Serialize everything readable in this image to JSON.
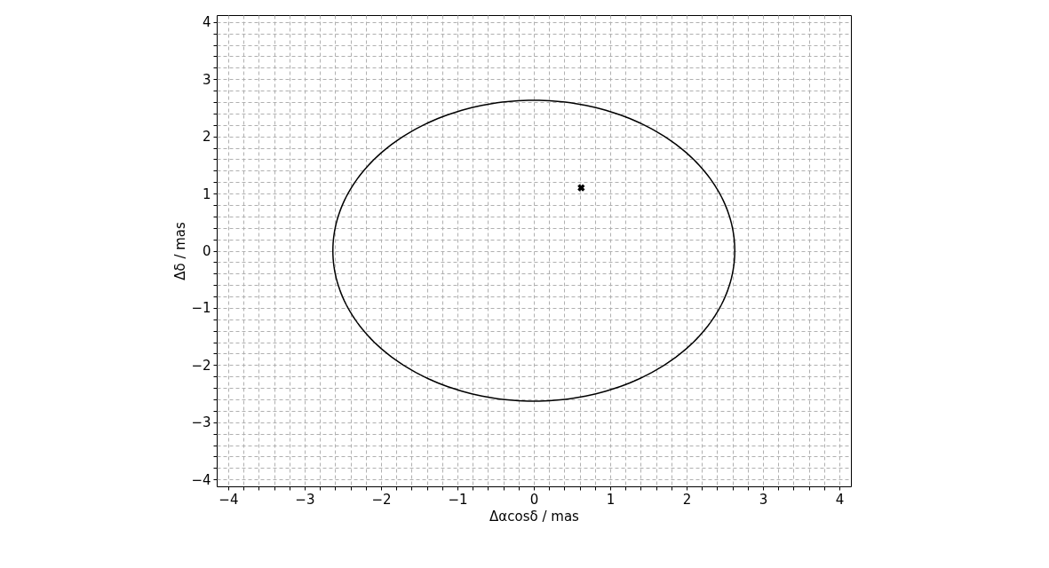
{
  "chart_data": {
    "type": "scatter",
    "xlabel": "Δαcosδ / mas",
    "ylabel": "Δδ / mas",
    "xlim": [
      -4.15,
      4.15
    ],
    "ylim": [
      -4.12,
      4.12
    ],
    "xticks": [
      -4,
      {
        "value": -3.8,
        "label": null
      },
      {
        "value": -3.6,
        "label": null
      },
      {
        "value": -3.4,
        "label": null
      },
      {
        "value": -3.2,
        "label": null
      },
      -3,
      {
        "value": -2.8,
        "label": null
      },
      {
        "value": -2.6,
        "label": null
      },
      {
        "value": -2.4,
        "label": null
      },
      {
        "value": -2.2,
        "label": null
      },
      -2,
      {
        "value": -1.8,
        "label": null
      },
      {
        "value": -1.6,
        "label": null
      },
      {
        "value": -1.4,
        "label": null
      },
      {
        "value": -1.2,
        "label": null
      },
      -1,
      {
        "value": -0.8,
        "label": null
      },
      {
        "value": -0.6,
        "label": null
      },
      {
        "value": -0.4,
        "label": null
      },
      {
        "value": -0.2,
        "label": null
      },
      0,
      {
        "value": 0.2,
        "label": null
      },
      {
        "value": 0.4,
        "label": null
      },
      {
        "value": 0.6,
        "label": null
      },
      {
        "value": 0.8,
        "label": null
      },
      1,
      {
        "value": 1.2,
        "label": null
      },
      {
        "value": 1.4,
        "label": null
      },
      {
        "value": 1.6,
        "label": null
      },
      {
        "value": 1.8,
        "label": null
      },
      2,
      {
        "value": 2.2,
        "label": null
      },
      {
        "value": 2.4,
        "label": null
      },
      {
        "value": 2.6,
        "label": null
      },
      {
        "value": 2.8,
        "label": null
      },
      3,
      {
        "value": 3.2,
        "label": null
      },
      {
        "value": 3.4,
        "label": null
      },
      {
        "value": 3.6,
        "label": null
      },
      {
        "value": 3.8,
        "label": null
      },
      4
    ],
    "yticks": [
      -4,
      {
        "value": -3.8,
        "label": null
      },
      {
        "value": -3.6,
        "label": null
      },
      {
        "value": -3.4,
        "label": null
      },
      {
        "value": -3.2,
        "label": null
      },
      -3,
      {
        "value": -2.8,
        "label": null
      },
      {
        "value": -2.6,
        "label": null
      },
      {
        "value": -2.4,
        "label": null
      },
      {
        "value": -2.2,
        "label": null
      },
      -2,
      {
        "value": -1.8,
        "label": null
      },
      {
        "value": -1.6,
        "label": null
      },
      {
        "value": -1.4,
        "label": null
      },
      {
        "value": -1.2,
        "label": null
      },
      -1,
      {
        "value": -0.8,
        "label": null
      },
      {
        "value": -0.6,
        "label": null
      },
      {
        "value": -0.4,
        "label": null
      },
      {
        "value": -0.2,
        "label": null
      },
      0,
      {
        "value": 0.2,
        "label": null
      },
      {
        "value": 0.4,
        "label": null
      },
      {
        "value": 0.6,
        "label": null
      },
      {
        "value": 0.8,
        "label": null
      },
      1,
      {
        "value": 1.2,
        "label": null
      },
      {
        "value": 1.4,
        "label": null
      },
      {
        "value": 1.6,
        "label": null
      },
      {
        "value": 1.8,
        "label": null
      },
      2,
      {
        "value": 2.2,
        "label": null
      },
      {
        "value": 2.4,
        "label": null
      },
      {
        "value": 2.6,
        "label": null
      },
      {
        "value": 2.8,
        "label": null
      },
      3,
      {
        "value": 3.2,
        "label": null
      },
      {
        "value": 3.4,
        "label": null
      },
      {
        "value": 3.6,
        "label": null
      },
      {
        "value": 3.8,
        "label": null
      },
      4
    ],
    "grid": true,
    "series": [
      {
        "color": "#000000",
        "marker": "cross",
        "x": [
          0.62
        ],
        "values": [
          1.1
        ]
      }
    ]
  }
}
